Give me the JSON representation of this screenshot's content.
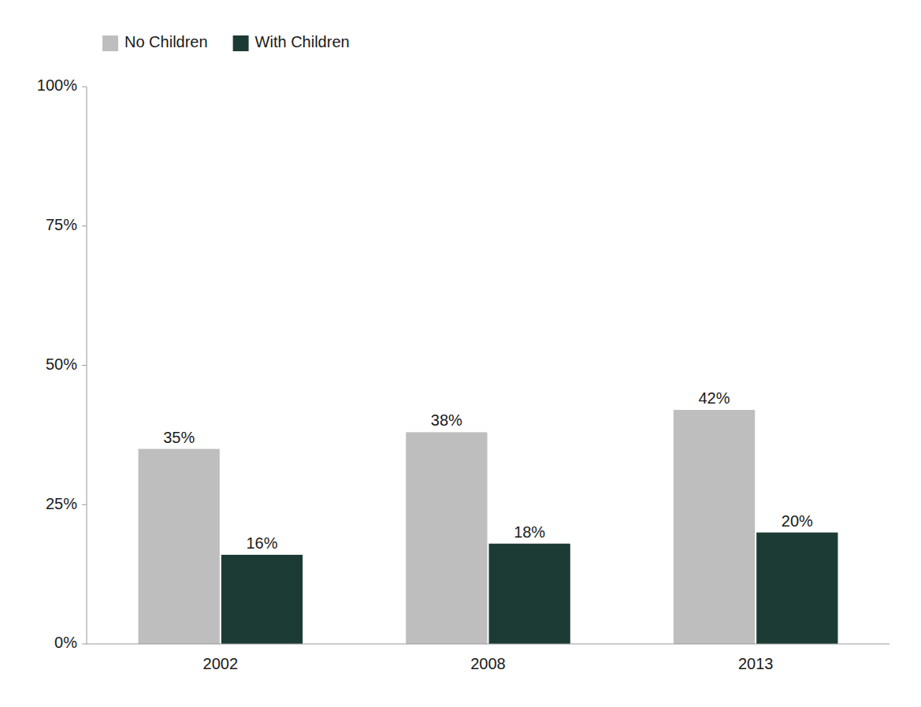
{
  "chart_data": {
    "type": "bar",
    "categories": [
      "2002",
      "2008",
      "2013"
    ],
    "series": [
      {
        "name": "No Children",
        "color": "#BEBEBE",
        "values": [
          35,
          38,
          42
        ],
        "value_labels": [
          "35%",
          "38%",
          "42%"
        ]
      },
      {
        "name": "With Children",
        "color": "#1C3B35",
        "values": [
          16,
          18,
          20
        ],
        "value_labels": [
          "16%",
          "18%",
          "20%"
        ]
      }
    ],
    "ylim": [
      0,
      100
    ],
    "yticks": [
      {
        "value": 0,
        "label": "0%"
      },
      {
        "value": 25,
        "label": "25%"
      },
      {
        "value": 50,
        "label": "50%"
      },
      {
        "value": 75,
        "label": "75%"
      },
      {
        "value": 100,
        "label": "100%"
      }
    ],
    "grid": false,
    "legend": "upper left",
    "data_labels": true
  }
}
